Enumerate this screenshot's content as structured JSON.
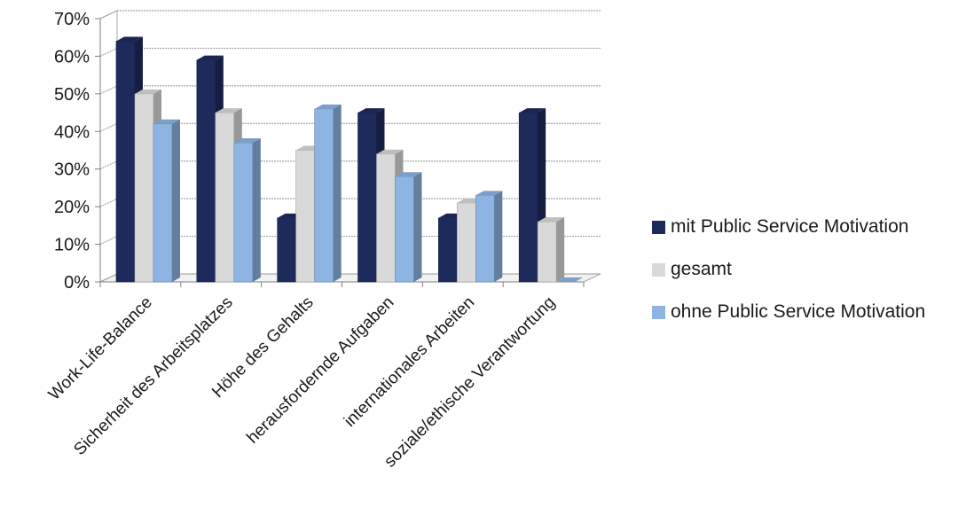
{
  "chart_data": {
    "type": "bar",
    "categories": [
      "Work-Life-Balance",
      "Sicherheit des Arbeitsplatzes",
      "Höhe des Gehalts",
      "herausfordernde Aufgaben",
      "internationales Arbeiten",
      "soziale/ethische Verantwortung"
    ],
    "series": [
      {
        "name": "mit Public Service Motivation",
        "color": "#1f2a5c",
        "values": [
          64,
          59,
          17,
          45,
          17,
          45
        ]
      },
      {
        "name": "gesamt",
        "color": "#d9d9d9",
        "values": [
          50,
          45,
          35,
          34,
          21,
          16
        ]
      },
      {
        "name": "ohne Public Service Motivation",
        "color": "#8eb4e3",
        "values": [
          42,
          37,
          46,
          28,
          23,
          0
        ]
      }
    ],
    "ylim": [
      0,
      70
    ],
    "yticks": [
      "0%",
      "10%",
      "20%",
      "30%",
      "40%",
      "50%",
      "60%",
      "70%"
    ],
    "grid": true,
    "legend_position": "right"
  }
}
